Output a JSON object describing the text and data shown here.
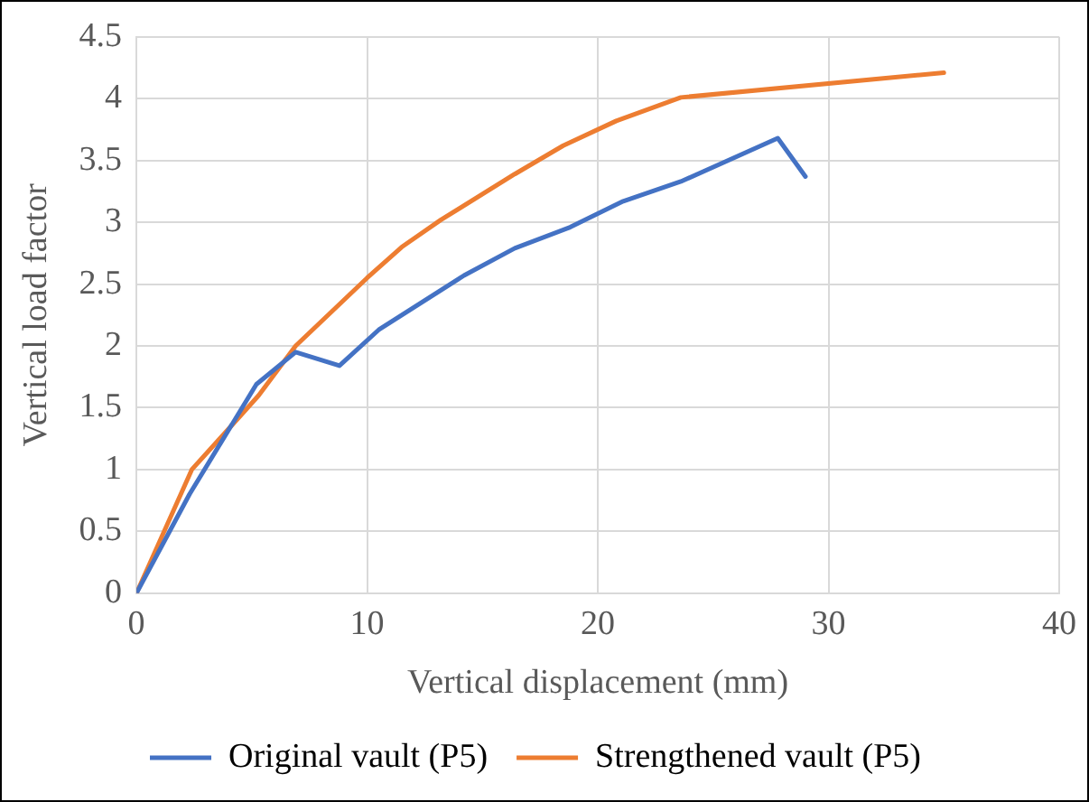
{
  "chart_data": {
    "type": "line",
    "xlabel": "Vertical displacement (mm)",
    "ylabel": "Vertical load factor",
    "xlim": [
      0,
      40
    ],
    "xticks": [
      0,
      10,
      20,
      30,
      40
    ],
    "ylim": [
      0,
      4.5
    ],
    "yticks": [
      0,
      0.5,
      1,
      1.5,
      2,
      2.5,
      3,
      3.5,
      4,
      4.5
    ],
    "grid": true,
    "legend": "bottom",
    "marker": "none",
    "series": [
      {
        "name": "Original vault (P5)",
        "color": "#4472c4",
        "x": [
          0,
          2.3,
          5.2,
          6.9,
          8.8,
          10.5,
          14.2,
          16.4,
          18.8,
          21.1,
          23.6,
          27.8,
          29.0
        ],
        "values": [
          0,
          0.8,
          1.69,
          1.95,
          1.84,
          2.13,
          2.57,
          2.79,
          2.96,
          3.17,
          3.33,
          3.68,
          3.37
        ]
      },
      {
        "name": "Strengthened vault (P5)",
        "color": "#ed7d31",
        "x": [
          0,
          2.4,
          4.0,
          5.3,
          6.9,
          10.0,
          11.5,
          13.2,
          16.4,
          18.5,
          20.8,
          23.6,
          35.0
        ],
        "values": [
          0,
          1.0,
          1.33,
          1.6,
          2.0,
          2.55,
          2.8,
          3.02,
          3.39,
          3.62,
          3.82,
          4.01,
          4.21
        ]
      }
    ]
  }
}
